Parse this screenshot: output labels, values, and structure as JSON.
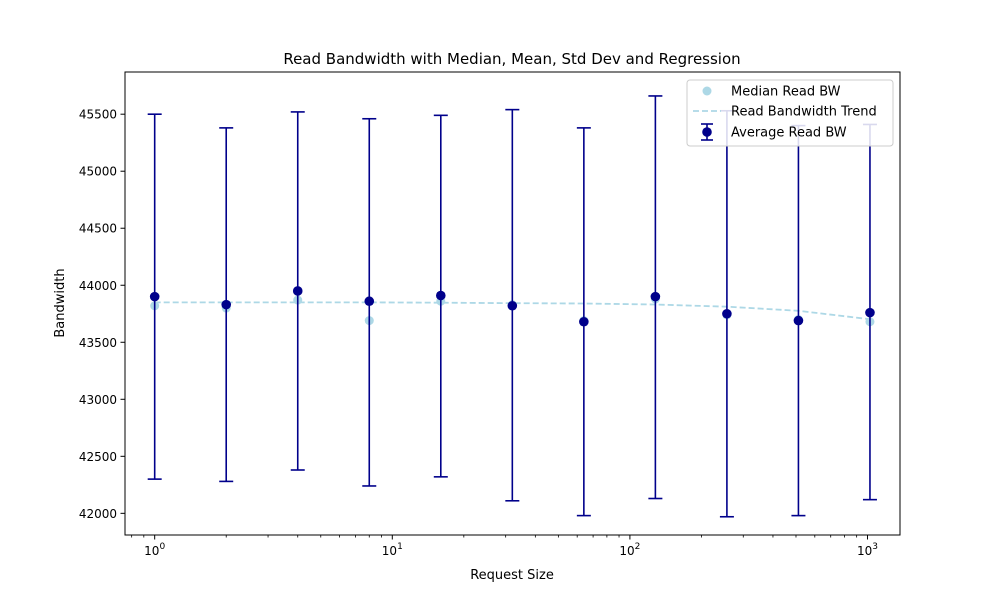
{
  "chart_data": {
    "type": "scatter",
    "title": "Read Bandwidth with Median, Mean, Std Dev and Regression",
    "xlabel": "Request Size",
    "ylabel": "Bandwidth",
    "xscale": "log",
    "xlim": [
      0.75,
      1370
    ],
    "ylim": [
      41810,
      45870
    ],
    "x_ticks": [
      {
        "value": 1,
        "base": "10",
        "exp": "0"
      },
      {
        "value": 10,
        "base": "10",
        "exp": "1"
      },
      {
        "value": 100,
        "base": "10",
        "exp": "2"
      },
      {
        "value": 1000,
        "base": "10",
        "exp": "3"
      }
    ],
    "y_ticks": [
      "42000",
      "42500",
      "43000",
      "43500",
      "44000",
      "44500",
      "45000",
      "45500"
    ],
    "x": [
      1,
      2,
      4,
      8,
      16,
      32,
      64,
      128,
      256,
      512,
      1024
    ],
    "series": [
      {
        "name": "Median Read BW",
        "kind": "scatter",
        "color": "#add8e6",
        "values": [
          43820,
          43800,
          43870,
          43690,
          43860,
          43830,
          43690,
          43880,
          43740,
          43700,
          43680
        ]
      },
      {
        "name": "Read Bandwidth Trend",
        "kind": "dashed-line",
        "color": "#add8e6",
        "values": [
          43850,
          43850,
          43850,
          43850,
          43847,
          43843,
          43840,
          43831,
          43812,
          43776,
          43702
        ]
      },
      {
        "name": "Average Read BW",
        "kind": "errorbar",
        "color": "#00008b",
        "values": [
          43900,
          43830,
          43950,
          43860,
          43910,
          43820,
          43680,
          43900,
          43750,
          43690,
          43760
        ],
        "err_low": [
          42300,
          42280,
          42380,
          42240,
          42320,
          42110,
          41980,
          42130,
          41970,
          41980,
          42120
        ],
        "err_high": [
          45500,
          45380,
          45520,
          45460,
          45490,
          45540,
          45380,
          45660,
          45530,
          45400,
          45410
        ]
      }
    ],
    "legend_position": "top-right",
    "grid": false
  }
}
